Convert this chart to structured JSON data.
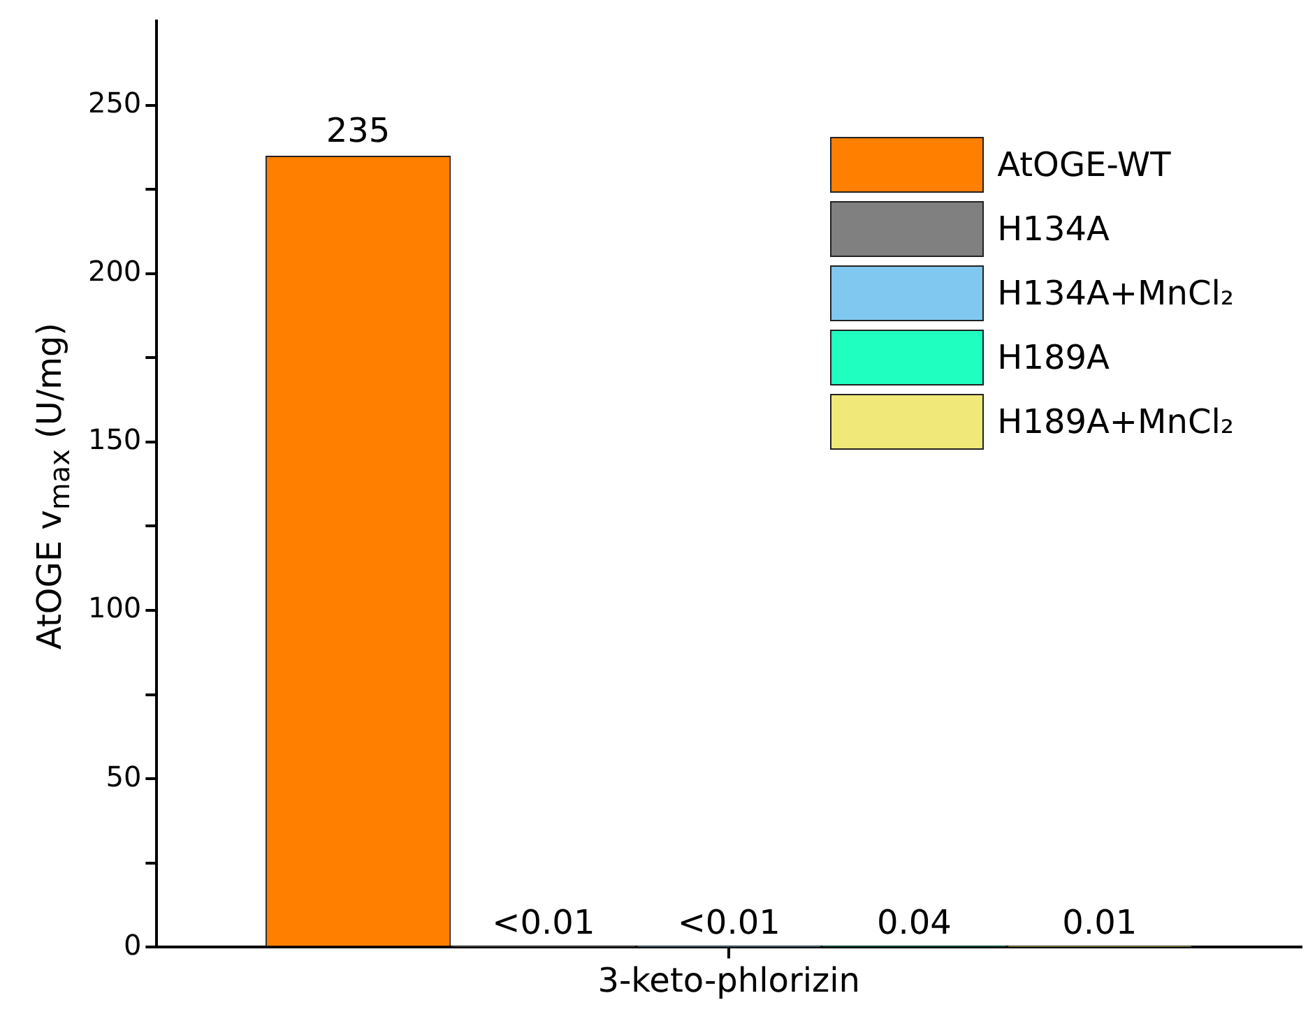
{
  "chart_data": {
    "type": "bar",
    "ylabel": "AtOGE v$_{max}$ (U/mg)",
    "categories": [
      "3-keto-phlorizin"
    ],
    "series": [
      {
        "name": "AtOGE-WT",
        "color": "#ff7f00",
        "values": [
          235
        ],
        "value_labels": [
          "235"
        ]
      },
      {
        "name": "H134A",
        "color": "#808080",
        "values": [
          0.01
        ],
        "value_labels": [
          "<0.01"
        ]
      },
      {
        "name": "H134A+MnCl₂",
        "color": "#80c8f0",
        "values": [
          0.01
        ],
        "value_labels": [
          "<0.01"
        ]
      },
      {
        "name": "H189A",
        "color": "#1effc0",
        "values": [
          0.04
        ],
        "value_labels": [
          "0.04"
        ]
      },
      {
        "name": "H189A+MnCl₂",
        "color": "#f0e878",
        "values": [
          0.01
        ],
        "value_labels": [
          "0.01"
        ]
      }
    ],
    "ylim": [
      0,
      275
    ],
    "yticks": [
      0,
      {
        "value": 25,
        "label": null
      },
      50,
      {
        "value": 75,
        "label": null
      },
      100,
      {
        "value": 125,
        "label": null
      },
      150,
      {
        "value": 175,
        "label": null
      },
      200,
      {
        "value": 225,
        "label": null
      },
      250
    ],
    "grid": false,
    "legend": "top right"
  }
}
